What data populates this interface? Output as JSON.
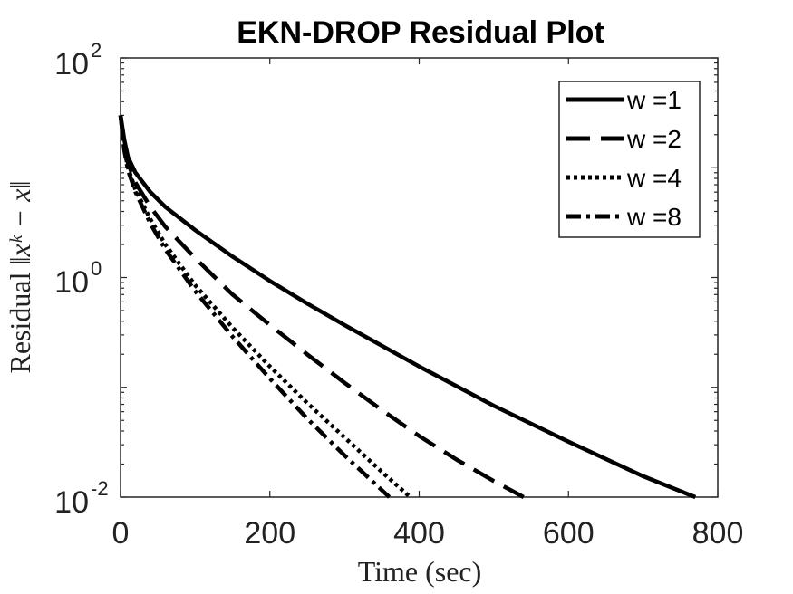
{
  "chart_data": {
    "type": "line",
    "title": "EKN-DROP Residual Plot",
    "xlabel": "Time (sec)",
    "ylabel_plain": "Residual",
    "ylabel_math": "‖xᵏ − x‖",
    "xlim": [
      0,
      800
    ],
    "ylim": [
      0.01,
      100
    ],
    "yscale": "log",
    "xticks": [
      "0",
      "200",
      "400",
      "600",
      "800"
    ],
    "yticks": [
      {
        "base": "10",
        "exp": "-2"
      },
      {
        "base": "10",
        "exp": "0"
      },
      {
        "base": "10",
        "exp": "2"
      }
    ],
    "legend_position": "top-right",
    "grid": false,
    "series": [
      {
        "name": "w =1",
        "style": "solid",
        "color": "#000000",
        "x": [
          0,
          5,
          10,
          20,
          40,
          60,
          100,
          150,
          200,
          250,
          300,
          400,
          500,
          600,
          700,
          770
        ],
        "y": [
          30,
          18,
          12.5,
          9,
          6,
          4.4,
          2.7,
          1.55,
          0.93,
          0.58,
          0.37,
          0.155,
          0.068,
          0.032,
          0.0155,
          0.01
        ]
      },
      {
        "name": "w =2",
        "style": "dashed",
        "color": "#000000",
        "x": [
          0,
          5,
          10,
          20,
          40,
          60,
          100,
          150,
          200,
          250,
          300,
          350,
          400,
          450,
          500,
          540
        ],
        "y": [
          30,
          16,
          11,
          7.3,
          4.4,
          2.9,
          1.5,
          0.7,
          0.37,
          0.2,
          0.11,
          0.062,
          0.036,
          0.022,
          0.014,
          0.01
        ]
      },
      {
        "name": "w =4",
        "style": "dotted",
        "color": "#000000",
        "x": [
          0,
          5,
          10,
          20,
          40,
          60,
          100,
          150,
          200,
          250,
          300,
          350,
          388
        ],
        "y": [
          30,
          15,
          10,
          6.3,
          3.4,
          2.0,
          0.85,
          0.35,
          0.155,
          0.072,
          0.035,
          0.017,
          0.01
        ]
      },
      {
        "name": "w =8",
        "style": "dashdot",
        "color": "#000000",
        "x": [
          0,
          5,
          10,
          20,
          40,
          60,
          100,
          150,
          200,
          250,
          300,
          360
        ],
        "y": [
          30,
          14.5,
          9.5,
          6.0,
          3.1,
          1.8,
          0.75,
          0.29,
          0.12,
          0.052,
          0.024,
          0.01
        ]
      }
    ]
  }
}
